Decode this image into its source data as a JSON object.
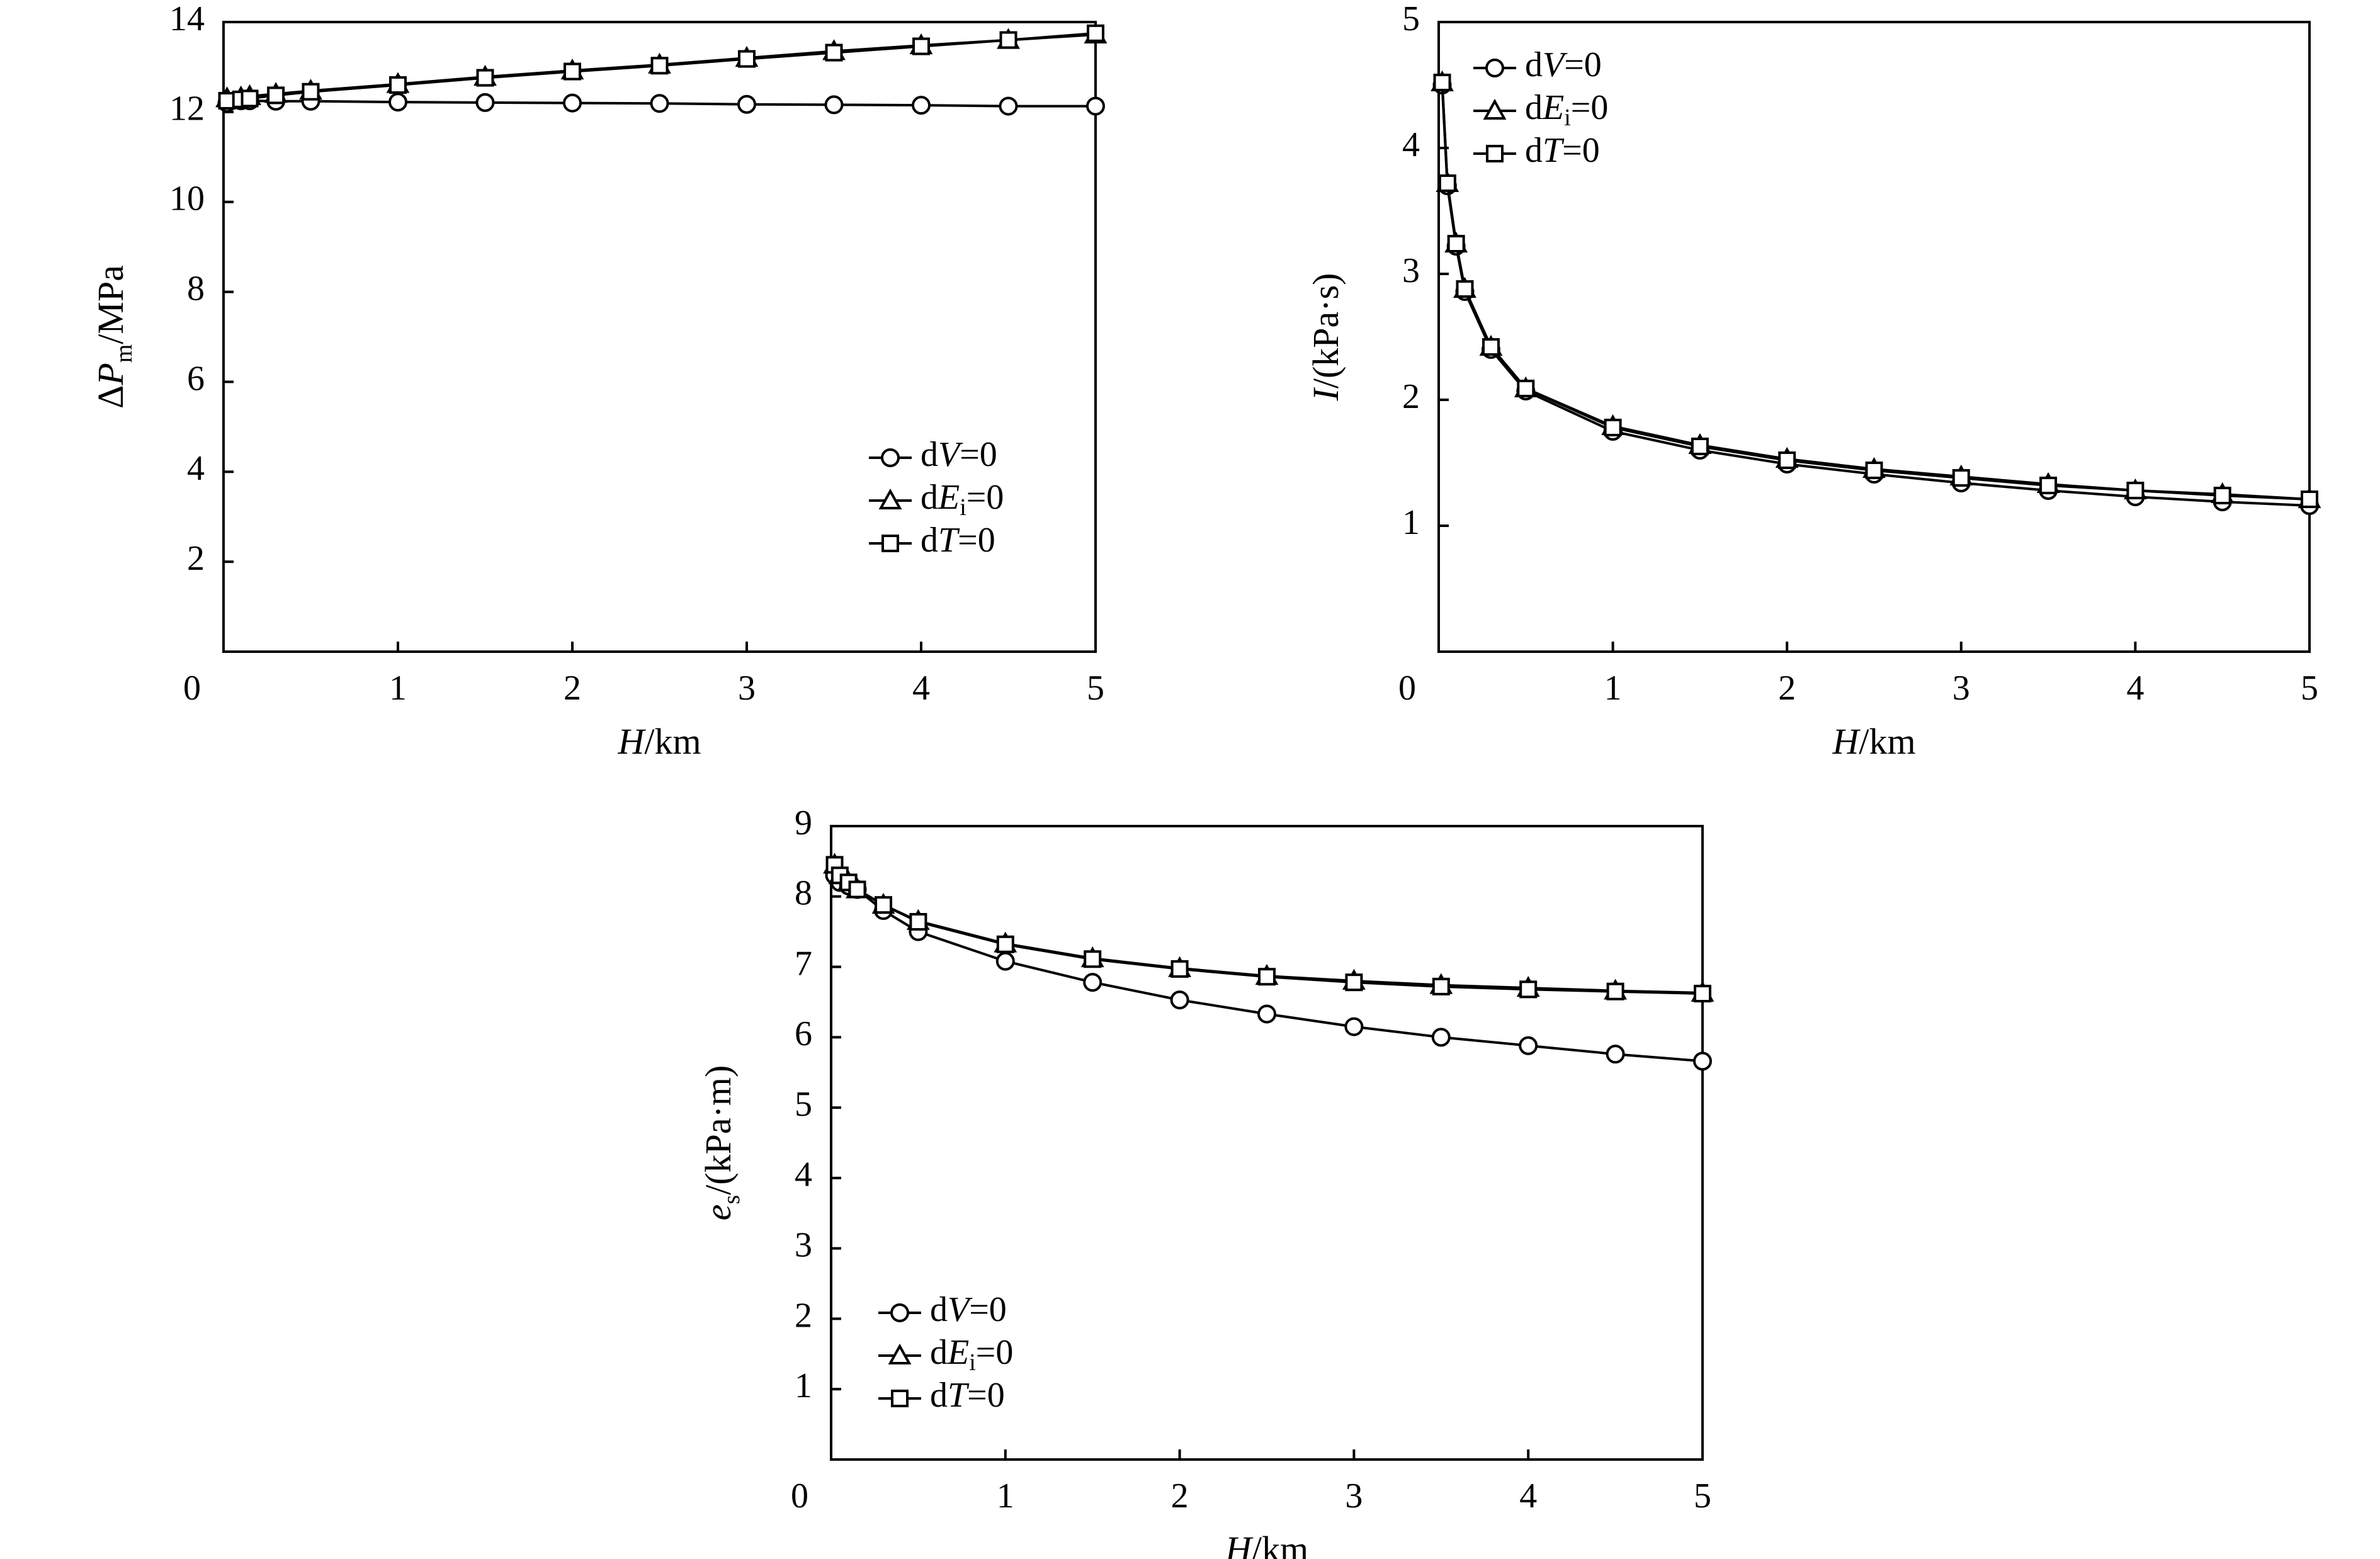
{
  "figure": {
    "marker_color": "#000000",
    "legend_labels": {
      "dV": {
        "pre": "d",
        "var": "V",
        "post": "=0"
      },
      "dEi": {
        "pre": "d",
        "var": "E",
        "sub": "i",
        "post": "=0"
      },
      "dT": {
        "pre": "d",
        "var": "T",
        "post": "=0"
      }
    }
  },
  "chart_data": [
    {
      "id": "dPm",
      "type": "line",
      "xlabel": {
        "var": "H",
        "rest": "/km"
      },
      "ylabel": {
        "pre": "Δ",
        "var": "P",
        "sub": "m",
        "rest": "/MPa"
      },
      "xlim": [
        0,
        5
      ],
      "ylim": [
        0,
        14
      ],
      "xticks": [
        "0",
        "1",
        "2",
        "3",
        "4",
        "5"
      ],
      "yticks": [
        "0",
        "2",
        "4",
        "6",
        "8",
        "10",
        "12",
        "14"
      ],
      "grid": false,
      "legend_position": "bottom-right",
      "series": [
        {
          "key": "dV",
          "marker": "circle",
          "x": [
            0.02,
            0.1,
            0.15,
            0.3,
            0.5,
            1,
            1.5,
            2,
            2.5,
            3,
            3.5,
            4,
            4.5,
            5
          ],
          "y": [
            12.2,
            12.25,
            12.25,
            12.24,
            12.24,
            12.22,
            12.21,
            12.2,
            12.19,
            12.17,
            12.16,
            12.15,
            12.13,
            12.13
          ]
        },
        {
          "key": "dEi",
          "marker": "triangle",
          "x": [
            0.02,
            0.1,
            0.15,
            0.3,
            0.5,
            1,
            1.5,
            2,
            2.5,
            3,
            3.5,
            4,
            4.5,
            5
          ],
          "y": [
            12.3,
            12.32,
            12.35,
            12.4,
            12.47,
            12.62,
            12.78,
            12.92,
            13.05,
            13.2,
            13.35,
            13.48,
            13.6,
            13.72
          ]
        },
        {
          "key": "dT",
          "marker": "square",
          "x": [
            0.02,
            0.1,
            0.15,
            0.3,
            0.5,
            1,
            1.5,
            2,
            2.5,
            3,
            3.5,
            4,
            4.5,
            5
          ],
          "y": [
            12.25,
            12.28,
            12.3,
            12.37,
            12.45,
            12.6,
            12.76,
            12.9,
            13.03,
            13.18,
            13.32,
            13.46,
            13.6,
            13.75
          ]
        }
      ]
    },
    {
      "id": "I",
      "type": "line",
      "xlabel": {
        "var": "H",
        "rest": "/km"
      },
      "ylabel": {
        "var": "I",
        "rest": "/(kPa·s)"
      },
      "xlim": [
        0,
        5
      ],
      "ylim": [
        0,
        5
      ],
      "xticks": [
        "0",
        "1",
        "2",
        "3",
        "4",
        "5"
      ],
      "yticks": [
        "0",
        "1",
        "2",
        "3",
        "4",
        "5"
      ],
      "grid": false,
      "legend_position": "top-left",
      "series": [
        {
          "key": "dV",
          "marker": "circle",
          "x": [
            0.02,
            0.05,
            0.1,
            0.15,
            0.3,
            0.5,
            1,
            1.5,
            2,
            2.5,
            3,
            3.5,
            4,
            4.5,
            5
          ],
          "y": [
            4.5,
            3.7,
            3.22,
            2.86,
            2.4,
            2.07,
            1.75,
            1.6,
            1.49,
            1.41,
            1.34,
            1.28,
            1.23,
            1.19,
            1.16
          ]
        },
        {
          "key": "dEi",
          "marker": "triangle",
          "x": [
            0.02,
            0.05,
            0.1,
            0.15,
            0.3,
            0.5,
            1,
            1.5,
            2,
            2.5,
            3,
            3.5,
            4,
            4.5,
            5
          ],
          "y": [
            4.52,
            3.72,
            3.24,
            2.88,
            2.42,
            2.09,
            1.79,
            1.64,
            1.53,
            1.45,
            1.39,
            1.33,
            1.28,
            1.25,
            1.21
          ]
        },
        {
          "key": "dT",
          "marker": "square",
          "x": [
            0.02,
            0.05,
            0.1,
            0.15,
            0.3,
            0.5,
            1,
            1.5,
            2,
            2.5,
            3,
            3.5,
            4,
            4.5,
            5
          ],
          "y": [
            4.52,
            3.72,
            3.24,
            2.88,
            2.42,
            2.09,
            1.78,
            1.63,
            1.52,
            1.44,
            1.38,
            1.32,
            1.28,
            1.24,
            1.21
          ]
        }
      ]
    },
    {
      "id": "es",
      "type": "line",
      "xlabel": {
        "var": "H",
        "rest": "/km"
      },
      "ylabel": {
        "var": "e",
        "sub": "s",
        "rest": "/(kPa·m)"
      },
      "xlim": [
        0,
        5
      ],
      "ylim": [
        0,
        9
      ],
      "xticks": [
        "0",
        "1",
        "2",
        "3",
        "4",
        "5"
      ],
      "yticks": [
        "0",
        "1",
        "2",
        "3",
        "4",
        "5",
        "6",
        "7",
        "8",
        "9"
      ],
      "grid": false,
      "legend_position": "bottom-left",
      "series": [
        {
          "key": "dV",
          "marker": "circle",
          "x": [
            0.02,
            0.05,
            0.1,
            0.15,
            0.3,
            0.5,
            1,
            1.5,
            2,
            2.5,
            3,
            3.5,
            4,
            4.5,
            5
          ],
          "y": [
            8.3,
            8.2,
            8.15,
            8.1,
            7.8,
            7.5,
            7.08,
            6.78,
            6.53,
            6.33,
            6.15,
            6.0,
            5.88,
            5.76,
            5.66
          ]
        },
        {
          "key": "dEi",
          "marker": "triangle",
          "x": [
            0.02,
            0.05,
            0.1,
            0.15,
            0.3,
            0.5,
            1,
            1.5,
            2,
            2.5,
            3,
            3.5,
            4,
            4.5,
            5
          ],
          "y": [
            8.45,
            8.3,
            8.2,
            8.1,
            7.88,
            7.65,
            7.33,
            7.12,
            6.98,
            6.87,
            6.8,
            6.74,
            6.7,
            6.66,
            6.63
          ]
        },
        {
          "key": "dT",
          "marker": "square",
          "x": [
            0.02,
            0.05,
            0.1,
            0.15,
            0.3,
            0.5,
            1,
            1.5,
            2,
            2.5,
            3,
            3.5,
            4,
            4.5,
            5
          ],
          "y": [
            8.45,
            8.3,
            8.2,
            8.1,
            7.88,
            7.64,
            7.32,
            7.11,
            6.97,
            6.86,
            6.78,
            6.72,
            6.68,
            6.65,
            6.62
          ]
        }
      ]
    }
  ]
}
